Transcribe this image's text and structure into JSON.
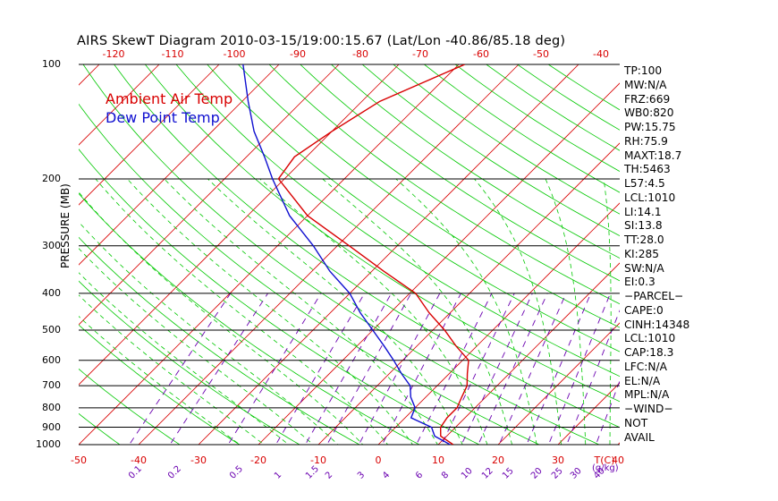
{
  "title": "AIRS SkewT Diagram 2010-03-15/19:00:15.67 (Lat/Lon -40.86/85.18 deg)",
  "legend": {
    "ambient": "Ambient Air Temp",
    "dew": "Dew Point Temp"
  },
  "y_axis_label": "PRESSURE (MB)",
  "stats": [
    "TP:100",
    "MW:N/A",
    "FRZ:669",
    "WB0:820",
    "PW:15.75",
    "RH:75.9",
    "MAXT:18.7",
    "TH:5463",
    "L57:4.5",
    "LCL:1010",
    "LI:14.1",
    "SI:13.8",
    "TT:28.0",
    "KI:285",
    "SW:N/A",
    "EI:0.3",
    "−PARCEL−",
    "CAPE:0",
    "CINH:14348",
    "LCL:1010",
    "CAP:18.3",
    "LFC:N/A",
    "EL:N/A",
    "MPL:N/A",
    "−WIND−",
    "NOT",
    "AVAIL"
  ],
  "colors": {
    "ambient": "#d80000",
    "dew": "#1010d0",
    "isotherm": "#d80000",
    "dry_adiabat": "#00c800",
    "moist_adiabat": "#00c800",
    "mixing_ratio": "#6a00b0",
    "isobar": "#000000"
  },
  "chart_data": {
    "type": "line",
    "title": "AIRS SkewT Diagram 2010-03-15/19:00:15.67 (Lat/Lon -40.86/85.18 deg)",
    "ylabel": "PRESSURE (MB)",
    "y_scale": "log",
    "pressure_ticks": [
      100,
      200,
      300,
      400,
      500,
      600,
      700,
      800,
      900,
      1000
    ],
    "top_temp_ticks": [
      -120,
      -110,
      -100,
      -90,
      -80,
      -70,
      -60,
      -50,
      -40
    ],
    "bottom_temp_ticks": [
      -50,
      -40,
      -30,
      -20,
      -10,
      0,
      10,
      20,
      30,
      40
    ],
    "bottom_temp_unit": "T(C)",
    "mixing_ratio_ticks": [
      "0.1",
      "0.2",
      "0.5",
      "1",
      "1.5",
      "2",
      "3",
      "4",
      "6",
      "8",
      "10",
      "12",
      "15",
      "20",
      "25",
      "30",
      "40"
    ],
    "mixing_ratio_unit": "(g/kg)",
    "series": [
      {
        "name": "Ambient Air Temp",
        "pressure": [
          1000,
          950,
          900,
          850,
          800,
          750,
          700,
          650,
          600,
          550,
          500,
          450,
          400,
          350,
          300,
          250,
          200,
          175,
          150,
          125,
          100
        ],
        "temp": [
          12.5,
          9,
          7.5,
          7,
          7,
          6,
          5,
          3,
          1,
          -3.5,
          -8,
          -13.5,
          -19,
          -28,
          -38,
          -50,
          -61,
          -62,
          -60,
          -57,
          -49
        ]
      },
      {
        "name": "Dew Point Temp",
        "pressure": [
          1000,
          950,
          900,
          850,
          800,
          750,
          700,
          650,
          600,
          550,
          500,
          450,
          400,
          350,
          300,
          250,
          200,
          175,
          150,
          125,
          100
        ],
        "temp": [
          12,
          8,
          6,
          1,
          0,
          -2.5,
          -4.5,
          -8,
          -11.5,
          -15.5,
          -20,
          -25,
          -30,
          -37,
          -44,
          -53,
          -62,
          -67,
          -73,
          -79,
          -86
        ]
      }
    ]
  }
}
